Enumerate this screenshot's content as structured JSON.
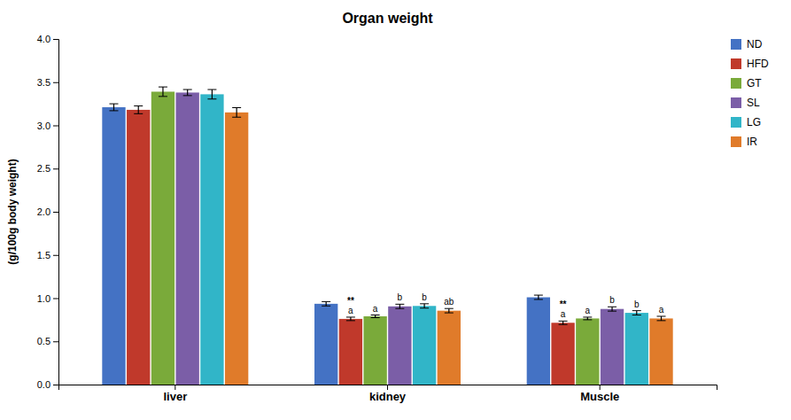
{
  "chart_data": {
    "type": "bar",
    "title": "Organ weight",
    "y_label": "(g/100g body weight)",
    "categories": [
      "liver",
      "kidney",
      "Muscle"
    ],
    "series": [
      {
        "name": "ND",
        "color": "#4472c4",
        "values": [
          3.21,
          0.935,
          1.01
        ],
        "errors": [
          0.04,
          0.025,
          0.025
        ],
        "annotations": [
          null,
          null,
          null
        ]
      },
      {
        "name": "HFD",
        "color": "#c0392b",
        "values": [
          3.18,
          0.76,
          0.715
        ],
        "errors": [
          0.045,
          0.02,
          0.02
        ],
        "annotations": [
          null,
          [
            "**",
            "a"
          ],
          [
            "**",
            "a"
          ]
        ]
      },
      {
        "name": "GT",
        "color": "#7aaa3a",
        "values": [
          3.39,
          0.79,
          0.765
        ],
        "errors": [
          0.055,
          0.015,
          0.015
        ],
        "annotations": [
          null,
          [
            "a"
          ],
          [
            "a"
          ]
        ]
      },
      {
        "name": "SL",
        "color": "#7b5ea7",
        "values": [
          3.38,
          0.905,
          0.875
        ],
        "errors": [
          0.035,
          0.025,
          0.025
        ],
        "annotations": [
          null,
          [
            "b"
          ],
          [
            "b"
          ]
        ]
      },
      {
        "name": "LG",
        "color": "#31b5c8",
        "values": [
          3.36,
          0.91,
          0.83
        ],
        "errors": [
          0.055,
          0.025,
          0.025
        ],
        "annotations": [
          null,
          [
            "b"
          ],
          [
            "b"
          ]
        ]
      },
      {
        "name": "IR",
        "color": "#e07b2a",
        "values": [
          3.15,
          0.855,
          0.765
        ],
        "errors": [
          0.055,
          0.025,
          0.025
        ],
        "annotations": [
          null,
          [
            "ab"
          ],
          [
            "a"
          ]
        ]
      }
    ],
    "ylim": [
      0.0,
      4.0
    ],
    "yticks": [
      {
        "value": 0.0,
        "label": "0.0"
      },
      0.5,
      {
        "value": 1.0,
        "label": "1.0"
      },
      1.5,
      {
        "value": 2.0,
        "label": "2.0"
      },
      2.5,
      {
        "value": 3.0,
        "label": "3.0"
      },
      3.5,
      {
        "value": 4.0,
        "label": "4.0"
      }
    ],
    "grid": false,
    "legend": "right"
  }
}
